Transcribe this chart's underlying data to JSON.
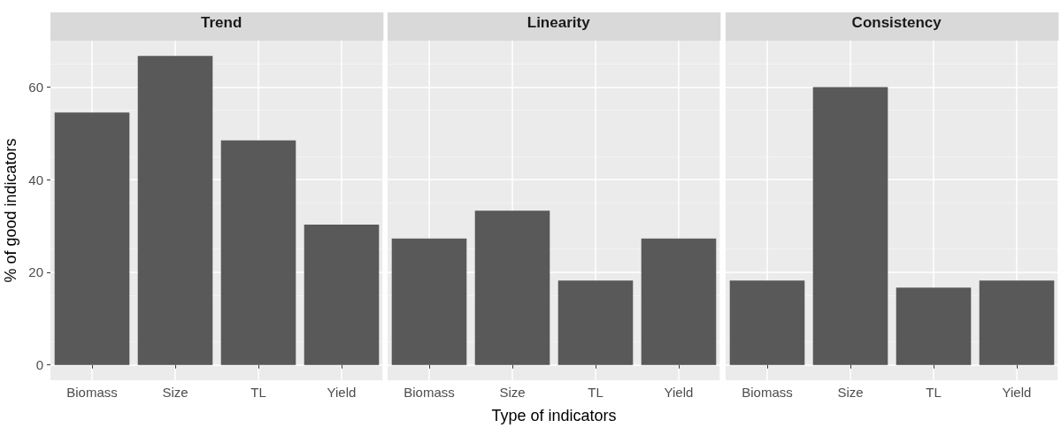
{
  "chart_data": [
    {
      "type": "bar",
      "title": "Trend",
      "ylabel": "% of good indicators",
      "categories": [
        "Biomass",
        "Size",
        "TL",
        "Yield"
      ],
      "values": [
        54.5,
        66.7,
        48.5,
        30.3
      ],
      "color": "#595959",
      "ylim": [
        -3.3,
        70
      ],
      "yticks": [
        0,
        20,
        40,
        60
      ],
      "grid": true
    },
    {
      "type": "bar",
      "title": "Linearity",
      "xlabel": "Type of indicators",
      "categories": [
        "Biomass",
        "Size",
        "TL",
        "Yield"
      ],
      "values": [
        27.3,
        33.3,
        18.2,
        27.3
      ],
      "color": "#595959",
      "ylim": [
        -3.3,
        70
      ],
      "yticks": [
        0,
        20,
        40,
        60
      ],
      "grid": true,
      "tick_labels": "x"
    },
    {
      "type": "bar",
      "title": "Consistency",
      "categories": [
        "Biomass",
        "Size",
        "TL",
        "Yield"
      ],
      "values": [
        18.2,
        60,
        16.7,
        18.2
      ],
      "color": "#595959",
      "ylim": [
        -3.3,
        70
      ],
      "yticks": [
        0,
        20,
        40,
        60
      ],
      "grid": true,
      "tick_labels": "x"
    }
  ]
}
